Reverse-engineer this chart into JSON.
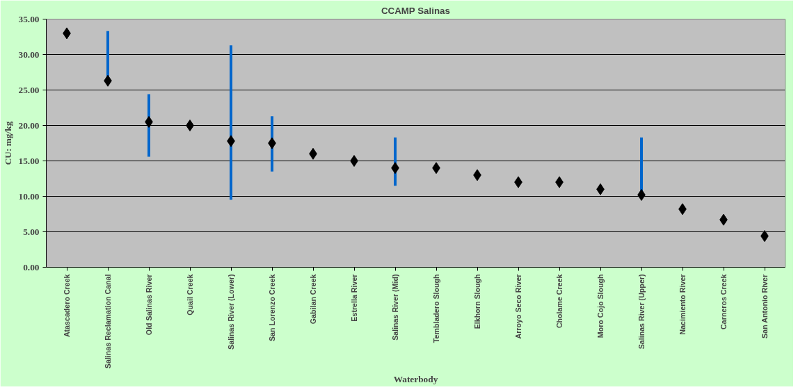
{
  "chart_data": {
    "type": "scatter",
    "title": "CCAMP Salinas",
    "xlabel": "Waterbody",
    "ylabel": "CU: mg/kg",
    "categories": [
      "Atascadero Creek",
      "Salinas Reclamation Canal",
      "Old Salinas River",
      "Quail Creek",
      "Salinas River (Lower)",
      "San Lorenzo Creek",
      "Gabilan Creek",
      "Estrella River",
      "Salinas River (Mid)",
      "Tembladero Slough",
      "Elkhorn Slough",
      "Arroyo Seco River",
      "Cholame Creek",
      "Moro Cojo Slough",
      "Salinas River (Upper)",
      "Nacimiento River",
      "Carneros Creek",
      "San Antonio River"
    ],
    "series": [
      {
        "color": "#000000",
        "values": [
          33.0,
          26.3,
          20.5,
          20.0,
          17.8,
          17.5,
          16.0,
          15.0,
          14.0,
          14.0,
          13.0,
          12.0,
          12.0,
          11.0,
          10.2,
          8.2,
          6.7,
          4.4
        ],
        "errors": [
          null,
          [
            26.3,
            33.3
          ],
          [
            15.6,
            24.4
          ],
          null,
          [
            9.5,
            31.3
          ],
          [
            13.5,
            21.3
          ],
          null,
          null,
          [
            11.5,
            18.3
          ],
          null,
          null,
          null,
          null,
          null,
          [
            10.2,
            18.3
          ],
          null,
          null,
          null
        ]
      }
    ],
    "ylim": [
      0,
      35
    ],
    "yticks": [
      {
        "value": 0,
        "label": "0.00"
      },
      {
        "value": 5,
        "label": "5.00"
      },
      {
        "value": 10,
        "label": "10.00"
      },
      {
        "value": 15,
        "label": "15.00"
      },
      {
        "value": 20,
        "label": "20.00"
      },
      {
        "value": 25,
        "label": "25.00"
      },
      {
        "value": 30,
        "label": "30.00"
      },
      {
        "value": 35,
        "label": "35.00"
      }
    ],
    "grid": "y",
    "marker": "diamond"
  }
}
